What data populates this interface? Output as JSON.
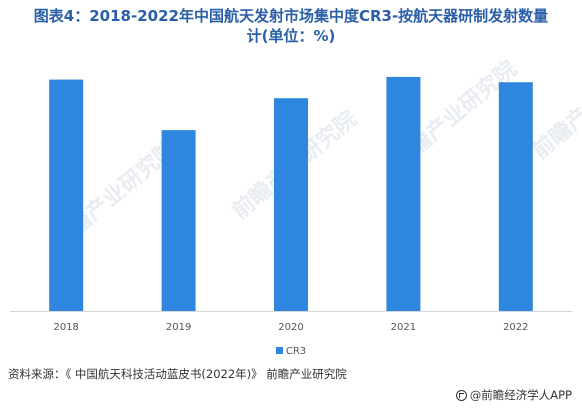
{
  "header": {
    "title_line1": "图表4：2018-2022年中国航天发射市场集中度CR3-按航天器研制发射数量",
    "title_line2": "计(单位：%)"
  },
  "chart_data": {
    "type": "bar",
    "categories": [
      "2018",
      "2019",
      "2020",
      "2021",
      "2022"
    ],
    "series": [
      {
        "name": "CR3",
        "values": [
          87,
          68,
          80,
          88,
          86
        ]
      }
    ],
    "ylim": [
      0,
      100
    ],
    "grid": false,
    "legend": "bottom",
    "bar_color": "#2e86de"
  },
  "footer": {
    "source": "资料来源：《 中国航天科技活动蓝皮书(2022年)》 前瞻产业研究院",
    "brand": "@前瞻经济学人APP"
  },
  "watermark": {
    "text": "前瞻产业研究院"
  }
}
